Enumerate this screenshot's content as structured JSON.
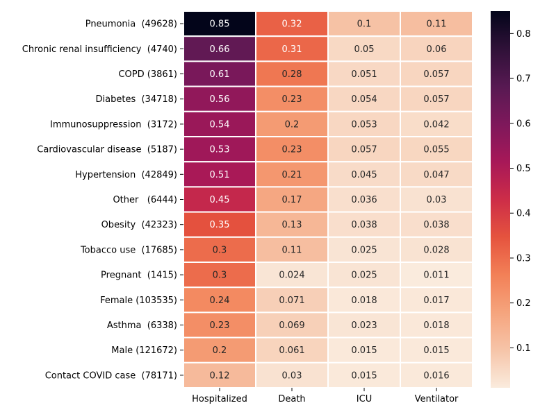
{
  "chart_data": {
    "type": "heatmap",
    "rows": [
      "Pneumonia  (49628)",
      "Chronic renal insufficiency  (4740)",
      "COPD (3861)",
      "Diabetes  (34718)",
      "Immunosuppression  (3172)",
      "Cardiovascular disease  (5187)",
      "Hypertension  (42849)",
      "Other   (6444)",
      "Obesity  (42323)",
      "Tobacco use  (17685)",
      "Pregnant  (1415)",
      "Female (103535)",
      "Asthma  (6338)",
      "Male (121672)",
      "Contact COVID case  (78171)"
    ],
    "columns": [
      "Hospitalized",
      "Death",
      "ICU",
      "Ventilator"
    ],
    "values": [
      [
        0.85,
        0.32,
        0.1,
        0.11
      ],
      [
        0.66,
        0.31,
        0.05,
        0.06
      ],
      [
        0.61,
        0.28,
        0.051,
        0.057
      ],
      [
        0.56,
        0.23,
        0.054,
        0.057
      ],
      [
        0.54,
        0.2,
        0.053,
        0.042
      ],
      [
        0.53,
        0.23,
        0.057,
        0.055
      ],
      [
        0.51,
        0.21,
        0.045,
        0.047
      ],
      [
        0.45,
        0.17,
        0.036,
        0.03
      ],
      [
        0.35,
        0.13,
        0.038,
        0.038
      ],
      [
        0.3,
        0.11,
        0.025,
        0.028
      ],
      [
        0.3,
        0.024,
        0.025,
        0.011
      ],
      [
        0.24,
        0.071,
        0.018,
        0.017
      ],
      [
        0.23,
        0.069,
        0.023,
        0.018
      ],
      [
        0.2,
        0.061,
        0.015,
        0.015
      ],
      [
        0.12,
        0.03,
        0.015,
        0.016
      ]
    ],
    "colorbar": {
      "range": [
        0.011,
        0.85
      ],
      "ticks": [
        0.1,
        0.2,
        0.3,
        0.4,
        0.5,
        0.6,
        0.7,
        0.8
      ],
      "colormap": "rocket_r"
    },
    "annotations": true
  }
}
